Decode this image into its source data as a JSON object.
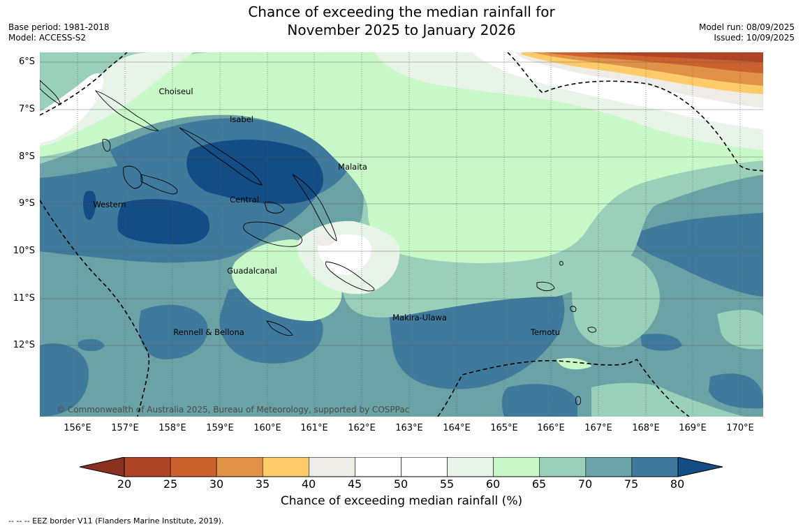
{
  "title_line1": "Chance of exceeding the median rainfall for",
  "title_line2": "November 2025 to January 2026",
  "meta_left": {
    "base_period": "Base period: 1981-2018",
    "model": "Model: ACCESS-S2"
  },
  "meta_right": {
    "model_run": "Model run: 08/09/2025",
    "issued": "Issued: 10/09/2025"
  },
  "lat_labels": [
    "6°S",
    "7°S",
    "8°S",
    "9°S",
    "10°S",
    "11°S",
    "12°S"
  ],
  "lon_labels": [
    "156°E",
    "157°E",
    "158°E",
    "159°E",
    "160°E",
    "161°E",
    "162°E",
    "163°E",
    "164°E",
    "165°E",
    "166°E",
    "167°E",
    "168°E",
    "169°E",
    "170°E"
  ],
  "regions": [
    {
      "name": "Choiseul"
    },
    {
      "name": "Isabel"
    },
    {
      "name": "Malaita"
    },
    {
      "name": "Western"
    },
    {
      "name": "Central"
    },
    {
      "name": "Guadalcanal"
    },
    {
      "name": "Makira-Ulawa"
    },
    {
      "name": "Rennell & Bellona"
    },
    {
      "name": "Temotu"
    }
  ],
  "copyright": "© Commonwealth of Australia 2025, Bureau of Meteorology, supported by COSPPac",
  "colorbar": {
    "ticks": [
      "20",
      "25",
      "30",
      "35",
      "40",
      "45",
      "50",
      "55",
      "60",
      "65",
      "70",
      "75",
      "80"
    ],
    "colors": [
      "#ad4426",
      "#cc6130",
      "#e09348",
      "#fecb6a",
      "#efebe6",
      "#ffffff",
      "#ffffff",
      "#e8f4e8",
      "#c8f7c8",
      "#9acfba",
      "#6aa2a5",
      "#3f7a9c"
    ],
    "under_color": "#8a3020",
    "over_color": "#144d85",
    "label": "Chance of exceeding median rainfall (%)"
  },
  "footnote": "--  --  -- EEZ border V11 (Flanders Marine Institute, 2019)."
}
